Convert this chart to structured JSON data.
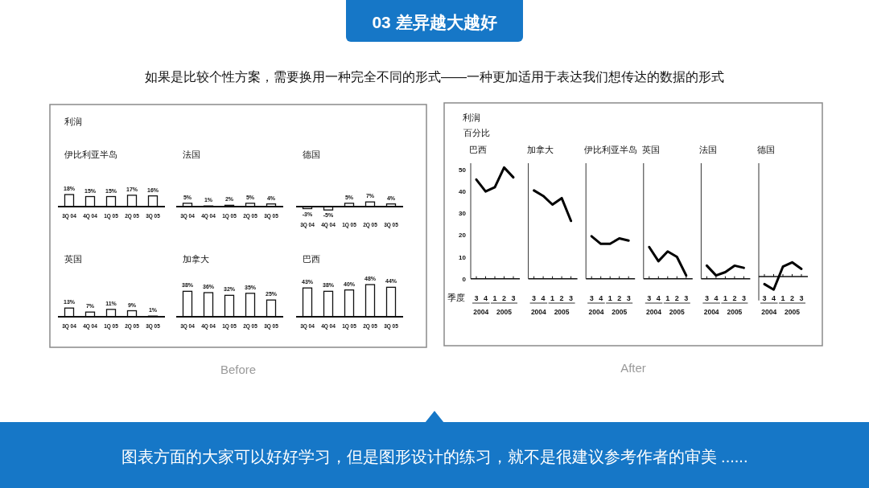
{
  "chart_data": [
    {
      "type": "other",
      "title": "03  差异越大越好",
      "subtitle": "如果是比较个性方案，需要换用一种完全不同的形式——一种更加适用于表达我们想传达的数据的形式",
      "annotations": [
        "图表方面的大家可以好好学习，但是图形设计的练习，就不是很建议参考作者的审美 ......"
      ]
    },
    {
      "type": "other",
      "title": "利润",
      "annotations": [
        "Before"
      ]
    },
    {
      "type": "bar",
      "title": "伊比利亚半岛",
      "categories": [
        "3Q 04",
        "4Q 04",
        "1Q 05",
        "2Q 05",
        "3Q 05"
      ],
      "values": [
        18,
        15,
        15,
        17,
        16
      ],
      "value_labels": [
        "18%",
        "15%",
        "15%",
        "17%",
        "16%"
      ],
      "color": "#ffffff"
    },
    {
      "type": "bar",
      "title": "法国",
      "categories": [
        "3Q 04",
        "4Q 04",
        "1Q 05",
        "2Q 05",
        "3Q 05"
      ],
      "values": [
        5,
        1,
        2,
        5,
        4
      ],
      "value_labels": [
        "5%",
        "1%",
        "2%",
        "5%",
        "4%"
      ],
      "color": "#ffffff"
    },
    {
      "type": "bar",
      "title": "德国",
      "categories": [
        "3Q 04",
        "4Q 04",
        "1Q 05",
        "2Q 05",
        "3Q 05"
      ],
      "values": [
        -3,
        -5,
        5,
        7,
        4
      ],
      "value_labels": [
        "-3%",
        "-5%",
        "5%",
        "7%",
        "4%"
      ],
      "color": "#ffffff"
    },
    {
      "type": "bar",
      "title": "英国",
      "categories": [
        "3Q 04",
        "4Q 04",
        "1Q 05",
        "2Q 05",
        "3Q 05"
      ],
      "values": [
        13,
        7,
        11,
        9,
        1
      ],
      "value_labels": [
        "13%",
        "7%",
        "11%",
        "9%",
        "1%"
      ],
      "color": "#ffffff"
    },
    {
      "type": "bar",
      "title": "加拿大",
      "categories": [
        "3Q 04",
        "4Q 04",
        "1Q 05",
        "2Q 05",
        "3Q 05"
      ],
      "values": [
        38,
        36,
        32,
        35,
        25
      ],
      "value_labels": [
        "38%",
        "36%",
        "32%",
        "35%",
        "25%"
      ],
      "color": "#ffffff"
    },
    {
      "type": "bar",
      "title": "巴西",
      "categories": [
        "3Q 04",
        "4Q 04",
        "1Q 05",
        "2Q 05",
        "3Q 05"
      ],
      "values": [
        43,
        38,
        40,
        48,
        44
      ],
      "value_labels": [
        "43%",
        "38%",
        "40%",
        "48%",
        "44%"
      ],
      "color": "#ffffff"
    },
    {
      "type": "other",
      "title": "利润",
      "subtitle": "百分比",
      "annotations": [
        "After"
      ]
    },
    {
      "type": "line",
      "title": "巴西",
      "xlabel": "季度",
      "categories": [
        "3",
        "4",
        "1",
        "2",
        "3"
      ],
      "values": [
        45.5,
        40,
        42,
        51,
        46.5
      ],
      "color": "#000000",
      "ylim": [
        0,
        53
      ],
      "yticks": [
        0,
        10,
        20,
        30,
        40,
        50
      ],
      "annotations": [
        "2004",
        "2005"
      ]
    },
    {
      "type": "line",
      "title": "加拿大",
      "categories": [
        "3",
        "4",
        "1",
        "2",
        "3"
      ],
      "values": [
        40.5,
        38,
        34,
        37,
        26.5
      ],
      "color": "#000000",
      "ylim": [
        0,
        53
      ],
      "yticks": [
        0,
        10,
        20,
        30,
        40,
        50
      ],
      "tick_labels": "x",
      "annotations": [
        "2004",
        "2005"
      ]
    },
    {
      "type": "line",
      "title": "伊比利亚半岛",
      "categories": [
        "3",
        "4",
        "1",
        "2",
        "3"
      ],
      "values": [
        19.5,
        16,
        16,
        18.5,
        17.5
      ],
      "color": "#000000",
      "ylim": [
        0,
        53
      ],
      "yticks": [
        0,
        10,
        20,
        30,
        40,
        50
      ],
      "tick_labels": "x",
      "annotations": [
        "2004",
        "2005"
      ]
    },
    {
      "type": "line",
      "title": "英国",
      "categories": [
        "3",
        "4",
        "1",
        "2",
        "3"
      ],
      "values": [
        14.5,
        8,
        12.5,
        10,
        1.5
      ],
      "color": "#000000",
      "ylim": [
        0,
        53
      ],
      "yticks": [
        0,
        10,
        20,
        30,
        40,
        50
      ],
      "tick_labels": "x",
      "annotations": [
        "2004",
        "2005"
      ]
    },
    {
      "type": "line",
      "title": "法国",
      "categories": [
        "3",
        "4",
        "1",
        "2",
        "3"
      ],
      "values": [
        6,
        1.5,
        3,
        6,
        5
      ],
      "color": "#000000",
      "ylim": [
        0,
        53
      ],
      "yticks": [
        0,
        10,
        20,
        30,
        40,
        50
      ],
      "tick_labels": "x",
      "annotations": [
        "2004",
        "2005"
      ]
    },
    {
      "type": "line",
      "title": "德国",
      "categories": [
        "3",
        "4",
        "1",
        "2",
        "3"
      ],
      "values": [
        -3.5,
        -6,
        4.5,
        6.5,
        3.5
      ],
      "color": "#000000",
      "ylim": [
        -11,
        52
      ],
      "yticks": [
        0,
        10,
        20,
        30,
        40,
        50
      ],
      "tick_labels": "x",
      "annotations": [
        "2004",
        "2005"
      ]
    }
  ]
}
